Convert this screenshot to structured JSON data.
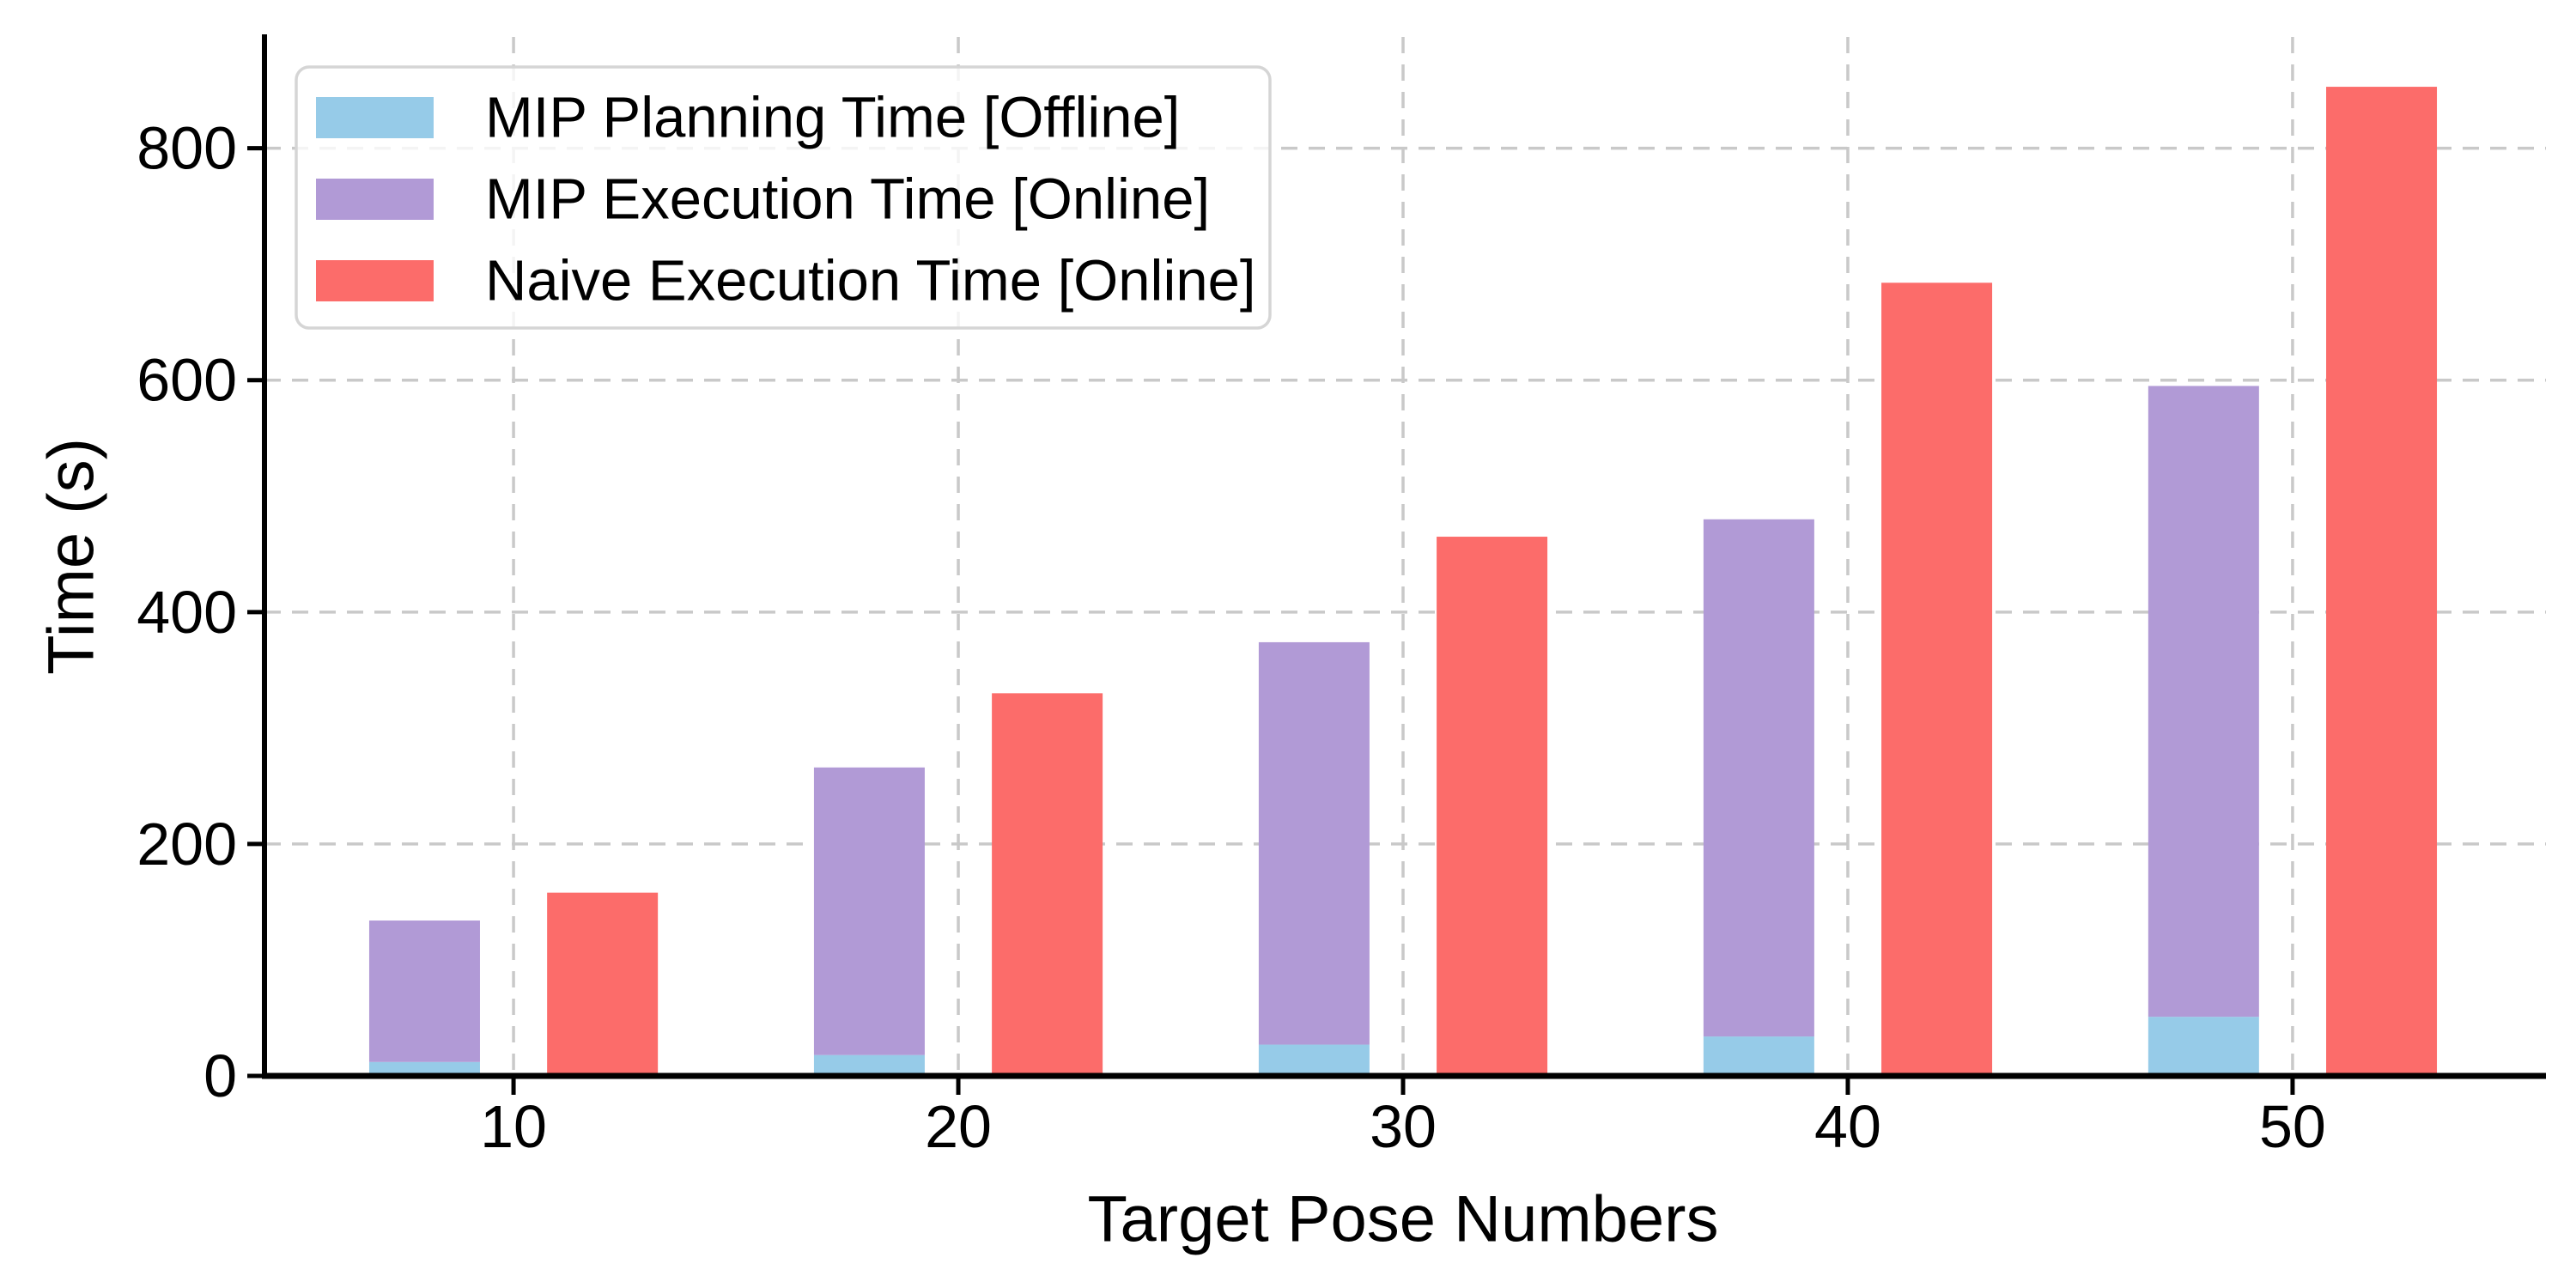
{
  "figure": {
    "xlabel": "Target Pose Numbers",
    "ylabel": "Time (s)"
  },
  "chart_data": {
    "type": "bar",
    "stacked": true,
    "title": "",
    "xlabel": "Target Pose Numbers",
    "ylabel": "Time (s)",
    "categories": [
      10,
      20,
      30,
      40,
      50
    ],
    "series": [
      {
        "name": "MIP Planning Time [Offline]",
        "color": "#96CBE8",
        "stack": "mip",
        "values": [
          12,
          18,
          27,
          34,
          51
        ]
      },
      {
        "name": "MIP Execution Time [Online]",
        "color": "#B19AD6",
        "stack": "mip",
        "values": [
          122,
          248,
          347,
          446,
          544
        ]
      },
      {
        "name": "Naive Execution Time [Online]",
        "color": "#FC6C6A",
        "stack": "naive",
        "values": [
          158,
          330,
          465,
          684,
          853
        ]
      }
    ],
    "mip_stack_totals": [
      134,
      266,
      374,
      480,
      595
    ],
    "yticks": [
      0,
      200,
      400,
      600,
      800
    ],
    "ylim": [
      0,
      896
    ],
    "xlim": [
      4.4,
      55.6
    ],
    "grid": true,
    "grid_style": "dashed",
    "gridline_color": "#C9C9C9",
    "axis_color": "#000000",
    "legend_position": "upper left",
    "legend_border_color": "#D5D5D5",
    "background": "#FFFFFF"
  }
}
